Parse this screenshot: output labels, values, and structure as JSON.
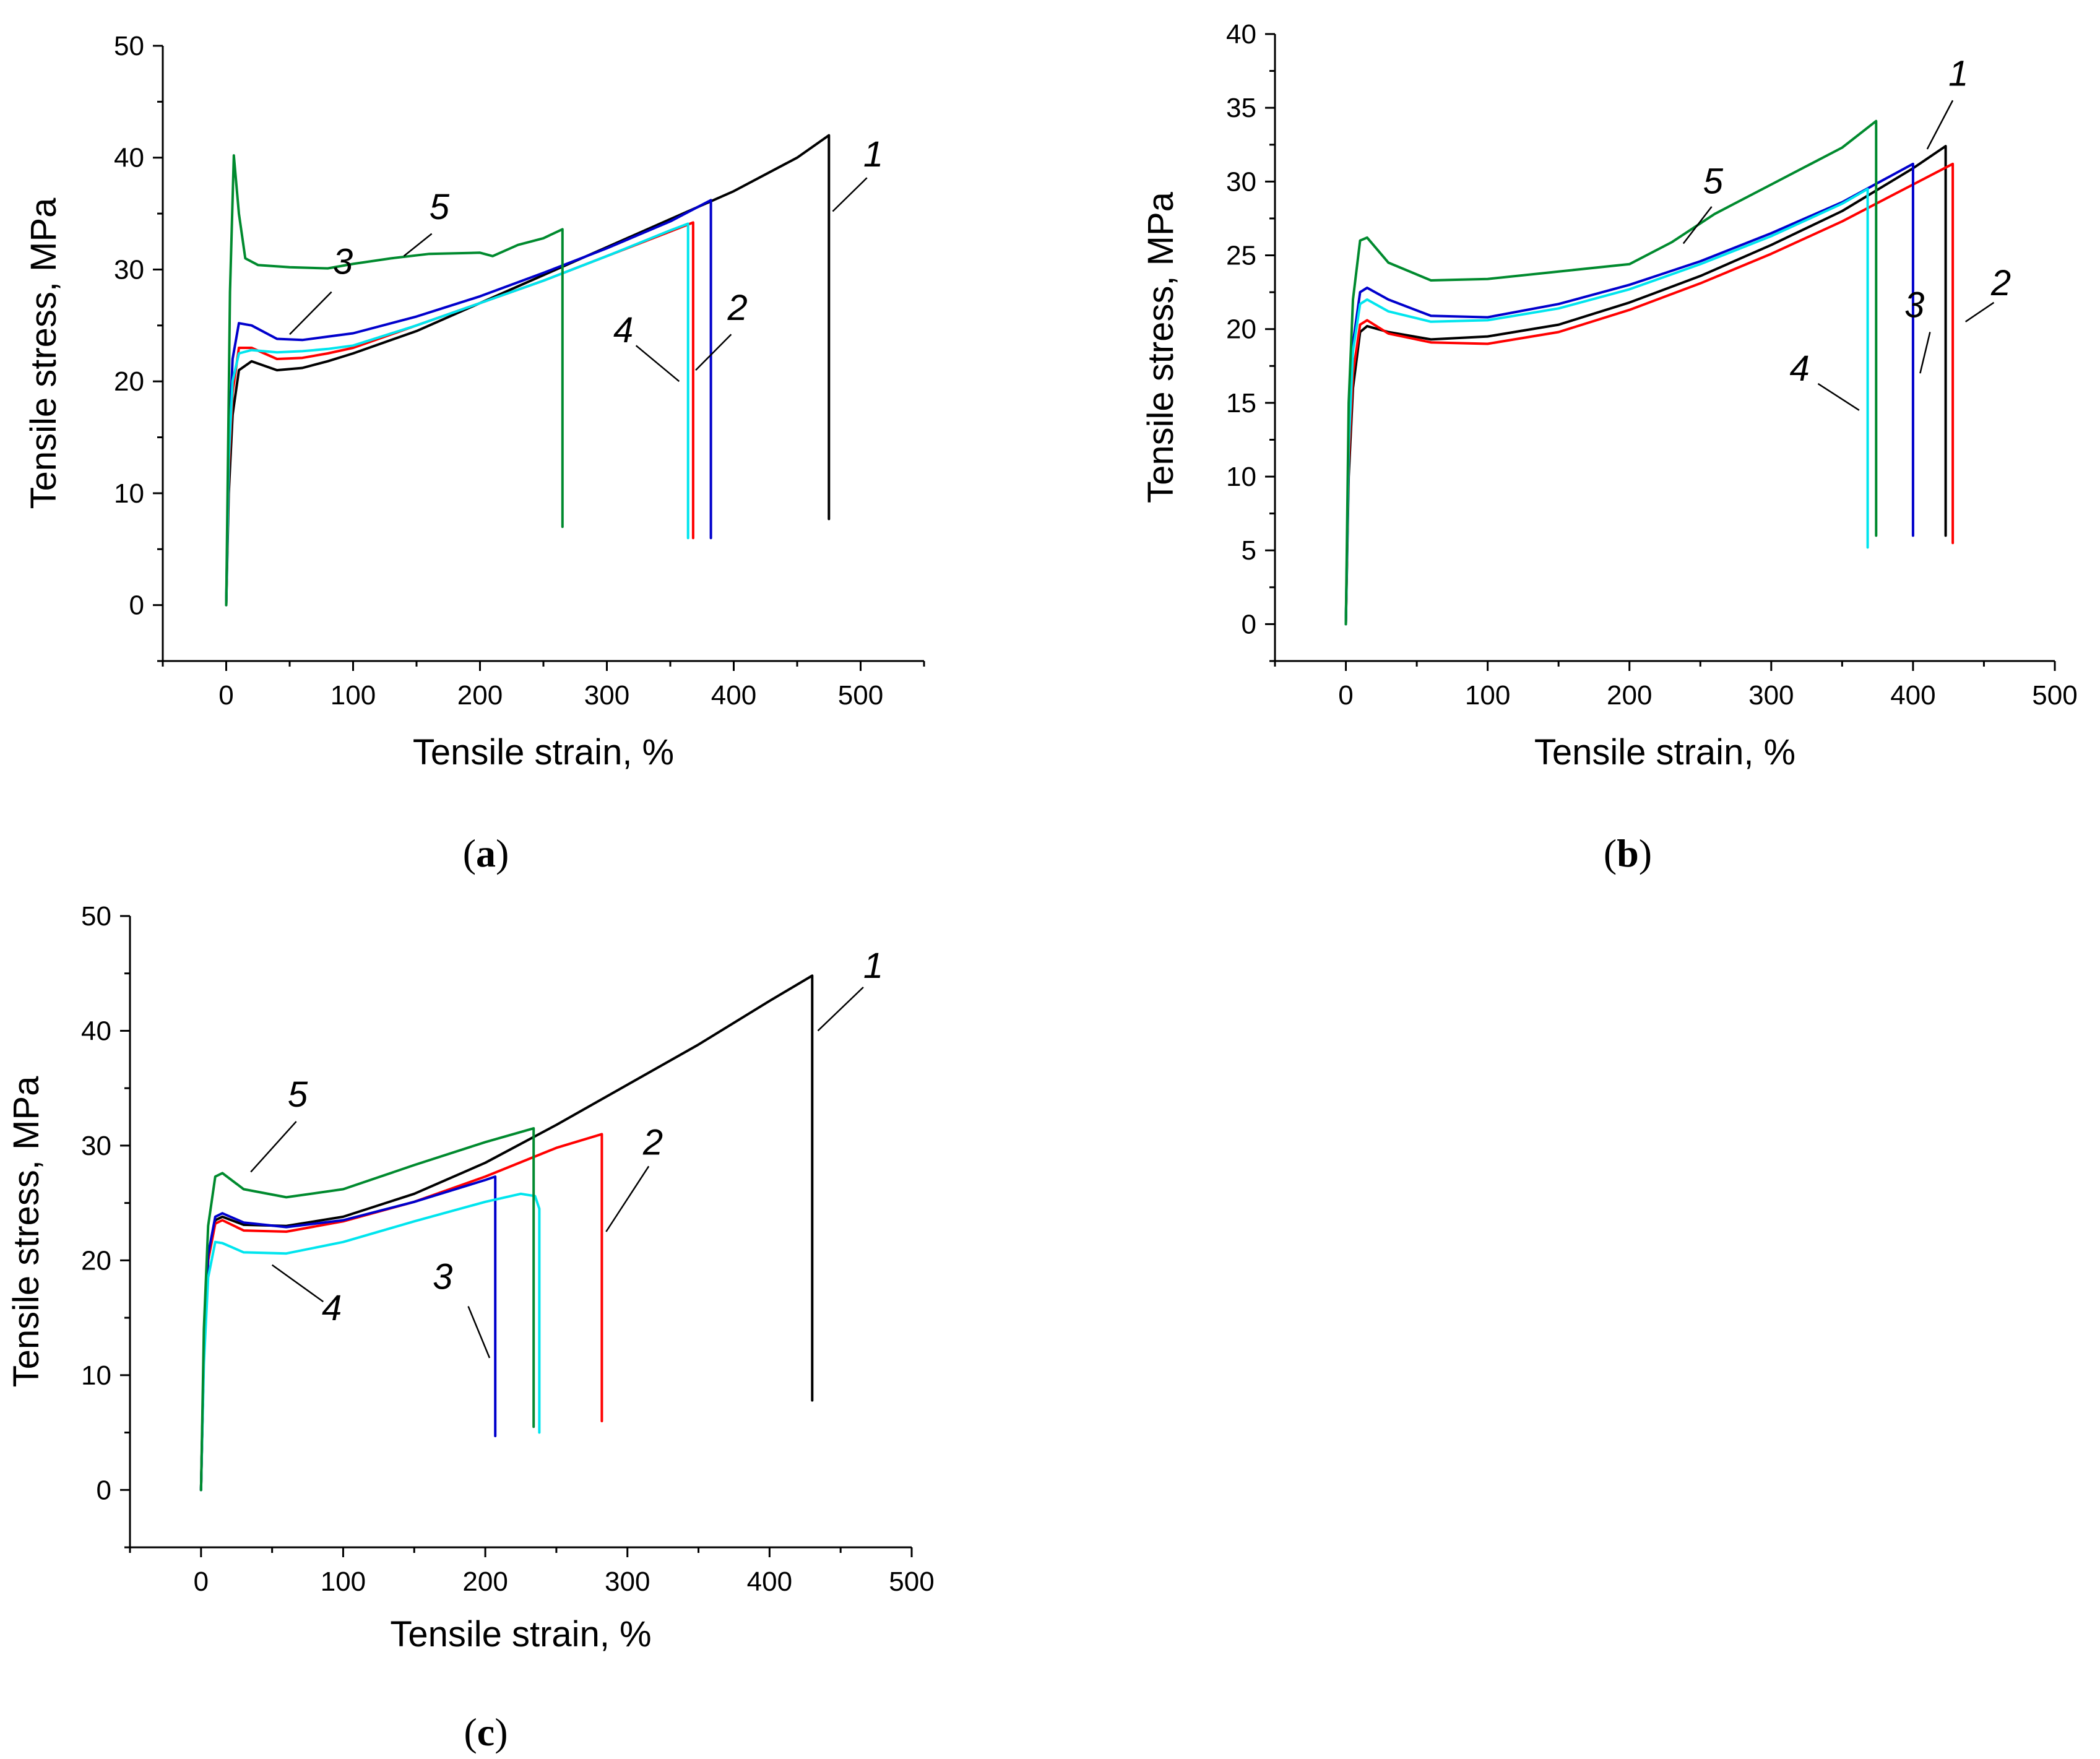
{
  "colors": {
    "1": "#000000",
    "2": "#ff0000",
    "3": "#0000cc",
    "4": "#00e5ee",
    "5": "#008a2e"
  },
  "chart_data": [
    {
      "id": "a",
      "type": "line",
      "caption": {
        "open": "(",
        "letter": "a",
        "close": ")"
      },
      "xlabel": "Tensile strain, %",
      "ylabel": "Tensile stress, MPa",
      "xlim": [
        -50,
        550
      ],
      "ylim": [
        -5,
        50
      ],
      "xticks": [
        0,
        100,
        200,
        300,
        400,
        500
      ],
      "yticks": [
        0,
        10,
        20,
        30,
        40,
        50
      ],
      "series": [
        {
          "name": "1",
          "x": [
            0,
            2,
            5,
            10,
            20,
            40,
            60,
            80,
            100,
            150,
            200,
            250,
            300,
            350,
            400,
            450,
            475,
            475
          ],
          "y": [
            0,
            10,
            17,
            21,
            21.8,
            21,
            21.2,
            21.8,
            22.5,
            24.5,
            27,
            29.5,
            32,
            34.5,
            37,
            40,
            42,
            7.7
          ]
        },
        {
          "name": "2",
          "x": [
            0,
            2,
            5,
            10,
            20,
            40,
            60,
            80,
            100,
            150,
            200,
            250,
            300,
            350,
            368,
            368
          ],
          "y": [
            0,
            12,
            19,
            23,
            23,
            22,
            22.1,
            22.5,
            23,
            25,
            27,
            29,
            31.2,
            33.4,
            34.2,
            6
          ]
        },
        {
          "name": "3",
          "x": [
            0,
            2,
            5,
            10,
            20,
            40,
            60,
            80,
            100,
            150,
            200,
            250,
            300,
            350,
            382,
            382
          ],
          "y": [
            0,
            14,
            22,
            25.2,
            25,
            23.8,
            23.7,
            24,
            24.3,
            25.8,
            27.6,
            29.7,
            31.9,
            34.3,
            36.2,
            6
          ]
        },
        {
          "name": "4",
          "x": [
            0,
            2,
            5,
            10,
            20,
            40,
            60,
            80,
            100,
            150,
            200,
            250,
            300,
            350,
            364,
            364
          ],
          "y": [
            0,
            13,
            20,
            22.5,
            22.8,
            22.6,
            22.7,
            22.9,
            23.2,
            25,
            27,
            29,
            31.2,
            33.5,
            34.1,
            6
          ]
        },
        {
          "name": "5",
          "x": [
            0,
            3,
            6,
            10,
            15,
            25,
            50,
            80,
            100,
            130,
            160,
            200,
            210,
            230,
            250,
            265,
            265
          ],
          "y": [
            0,
            28,
            40.2,
            35,
            31,
            30.4,
            30.2,
            30.1,
            30.5,
            31,
            31.4,
            31.5,
            31.2,
            32.2,
            32.8,
            33.6,
            7
          ]
        }
      ],
      "annotations": [
        {
          "text": "1",
          "x": 510,
          "y": 39.2,
          "lx1": 505,
          "ly1": 38.2,
          "lx2": 478,
          "ly2": 35.2
        },
        {
          "text": "2",
          "x": 403,
          "y": 25.5,
          "lx1": 398,
          "ly1": 24.2,
          "lx2": 370,
          "ly2": 21
        },
        {
          "text": "3",
          "x": 92,
          "y": 29.6,
          "lx1": 83,
          "ly1": 28,
          "lx2": 50,
          "ly2": 24.2
        },
        {
          "text": "4",
          "x": 313,
          "y": 23.5,
          "lx1": 323,
          "ly1": 23.2,
          "lx2": 357,
          "ly2": 20
        },
        {
          "text": "5",
          "x": 168,
          "y": 34.5,
          "lx1": 162,
          "ly1": 33.2,
          "lx2": 140,
          "ly2": 31.2
        }
      ]
    },
    {
      "id": "b",
      "type": "line",
      "caption": {
        "open": "(",
        "letter": "b",
        "close": ")"
      },
      "xlabel": "Tensile strain, %",
      "ylabel": "Tensile stress, MPa",
      "xlim": [
        -50,
        500
      ],
      "ylim": [
        -2.5,
        40
      ],
      "xticks": [
        0,
        100,
        200,
        300,
        400,
        500
      ],
      "yticks": [
        0,
        5,
        10,
        15,
        20,
        25,
        30,
        35,
        40
      ],
      "series": [
        {
          "name": "1",
          "x": [
            0,
            2,
            5,
            10,
            15,
            30,
            60,
            100,
            150,
            200,
            250,
            300,
            350,
            400,
            423,
            423
          ],
          "y": [
            0,
            10,
            16,
            19.8,
            20.2,
            19.8,
            19.3,
            19.5,
            20.3,
            21.8,
            23.6,
            25.7,
            28,
            30.9,
            32.4,
            6
          ]
        },
        {
          "name": "2",
          "x": [
            0,
            2,
            5,
            10,
            15,
            30,
            60,
            100,
            150,
            200,
            250,
            300,
            350,
            400,
            428,
            428
          ],
          "y": [
            0,
            11,
            17,
            20.3,
            20.6,
            19.7,
            19.1,
            19,
            19.8,
            21.3,
            23.1,
            25.1,
            27.3,
            29.8,
            31.2,
            5.5
          ]
        },
        {
          "name": "3",
          "x": [
            0,
            2,
            5,
            10,
            15,
            30,
            60,
            100,
            150,
            200,
            250,
            300,
            350,
            400,
            400
          ],
          "y": [
            0,
            12,
            19,
            22.5,
            22.8,
            22,
            20.9,
            20.8,
            21.7,
            23,
            24.6,
            26.5,
            28.6,
            31.2,
            6
          ]
        },
        {
          "name": "4",
          "x": [
            0,
            2,
            5,
            10,
            15,
            30,
            60,
            100,
            150,
            200,
            250,
            300,
            350,
            368,
            368
          ],
          "y": [
            0,
            12,
            18.5,
            21.7,
            22,
            21.2,
            20.5,
            20.6,
            21.4,
            22.7,
            24.4,
            26.3,
            28.5,
            29.5,
            5.2
          ]
        },
        {
          "name": "5",
          "x": [
            0,
            2,
            5,
            10,
            15,
            30,
            60,
            100,
            150,
            200,
            230,
            260,
            300,
            350,
            374,
            374
          ],
          "y": [
            0,
            15,
            22,
            26,
            26.2,
            24.5,
            23.3,
            23.4,
            23.9,
            24.4,
            25.9,
            27.8,
            29.8,
            32.3,
            34.1,
            6
          ]
        }
      ],
      "annotations": [
        {
          "text": "1",
          "x": 432,
          "y": 36.5,
          "lx1": 428,
          "ly1": 35.5,
          "lx2": 410,
          "ly2": 32.2
        },
        {
          "text": "2",
          "x": 462,
          "y": 22.3,
          "lx1": 457,
          "ly1": 21.8,
          "lx2": 437,
          "ly2": 20.5
        },
        {
          "text": "3",
          "x": 401,
          "y": 20.8,
          "lx1": 412,
          "ly1": 19.8,
          "lx2": 405,
          "ly2": 17
        },
        {
          "text": "4",
          "x": 320,
          "y": 16.5,
          "lx1": 333,
          "ly1": 16.3,
          "lx2": 362,
          "ly2": 14.5
        },
        {
          "text": "5",
          "x": 259,
          "y": 29.2,
          "lx1": 258,
          "ly1": 28.3,
          "lx2": 238,
          "ly2": 25.8
        }
      ]
    },
    {
      "id": "c",
      "type": "line",
      "caption": {
        "open": "(",
        "letter": "c",
        "close": ")"
      },
      "xlabel": "Tensile strain, %",
      "ylabel": "Tensile stress, MPa",
      "xlim": [
        -50,
        500
      ],
      "ylim": [
        -5,
        50
      ],
      "xticks": [
        0,
        100,
        200,
        300,
        400,
        500
      ],
      "yticks": [
        0,
        10,
        20,
        30,
        40,
        50
      ],
      "series": [
        {
          "name": "1",
          "x": [
            0,
            2,
            5,
            10,
            15,
            30,
            60,
            100,
            150,
            200,
            250,
            300,
            350,
            400,
            430,
            430
          ],
          "y": [
            0,
            12,
            20,
            23.5,
            23.8,
            23.1,
            23,
            23.8,
            25.8,
            28.5,
            31.8,
            35.3,
            38.8,
            42.6,
            44.8,
            7.8
          ]
        },
        {
          "name": "2",
          "x": [
            0,
            2,
            5,
            10,
            15,
            30,
            60,
            100,
            150,
            200,
            250,
            282,
            282
          ],
          "y": [
            0,
            12,
            20,
            23.2,
            23.5,
            22.6,
            22.5,
            23.4,
            25.1,
            27.3,
            29.8,
            31,
            6
          ]
        },
        {
          "name": "3",
          "x": [
            0,
            2,
            5,
            10,
            15,
            30,
            60,
            100,
            150,
            200,
            207,
            207
          ],
          "y": [
            0,
            12,
            20.5,
            23.8,
            24.1,
            23.3,
            22.9,
            23.5,
            25.1,
            27,
            27.3,
            4.7
          ]
        },
        {
          "name": "4",
          "x": [
            0,
            2,
            5,
            10,
            15,
            30,
            60,
            100,
            150,
            200,
            225,
            235,
            238,
            238
          ],
          "y": [
            0,
            11,
            18.5,
            21.6,
            21.5,
            20.7,
            20.6,
            21.6,
            23.4,
            25.1,
            25.8,
            25.6,
            24.5,
            5
          ]
        },
        {
          "name": "5",
          "x": [
            0,
            2,
            5,
            10,
            15,
            30,
            60,
            100,
            150,
            200,
            234,
            234
          ],
          "y": [
            0,
            14,
            23,
            27.3,
            27.6,
            26.2,
            25.5,
            26.2,
            28.3,
            30.3,
            31.5,
            5.5
          ]
        }
      ],
      "annotations": [
        {
          "text": "1",
          "x": 473,
          "y": 44.6,
          "lx1": 466,
          "ly1": 43.8,
          "lx2": 434,
          "ly2": 40
        },
        {
          "text": "2",
          "x": 318,
          "y": 29.2,
          "lx1": 315,
          "ly1": 28.2,
          "lx2": 285,
          "ly2": 22.5
        },
        {
          "text": "3",
          "x": 170,
          "y": 17.5,
          "lx1": 188,
          "ly1": 16,
          "lx2": 203,
          "ly2": 11.5
        },
        {
          "text": "4",
          "x": 92,
          "y": 14.8,
          "lx1": 86,
          "ly1": 16.4,
          "lx2": 50,
          "ly2": 19.6
        },
        {
          "text": "5",
          "x": 68,
          "y": 33.4,
          "lx1": 67,
          "ly1": 32.1,
          "lx2": 35,
          "ly2": 27.7
        }
      ]
    }
  ]
}
